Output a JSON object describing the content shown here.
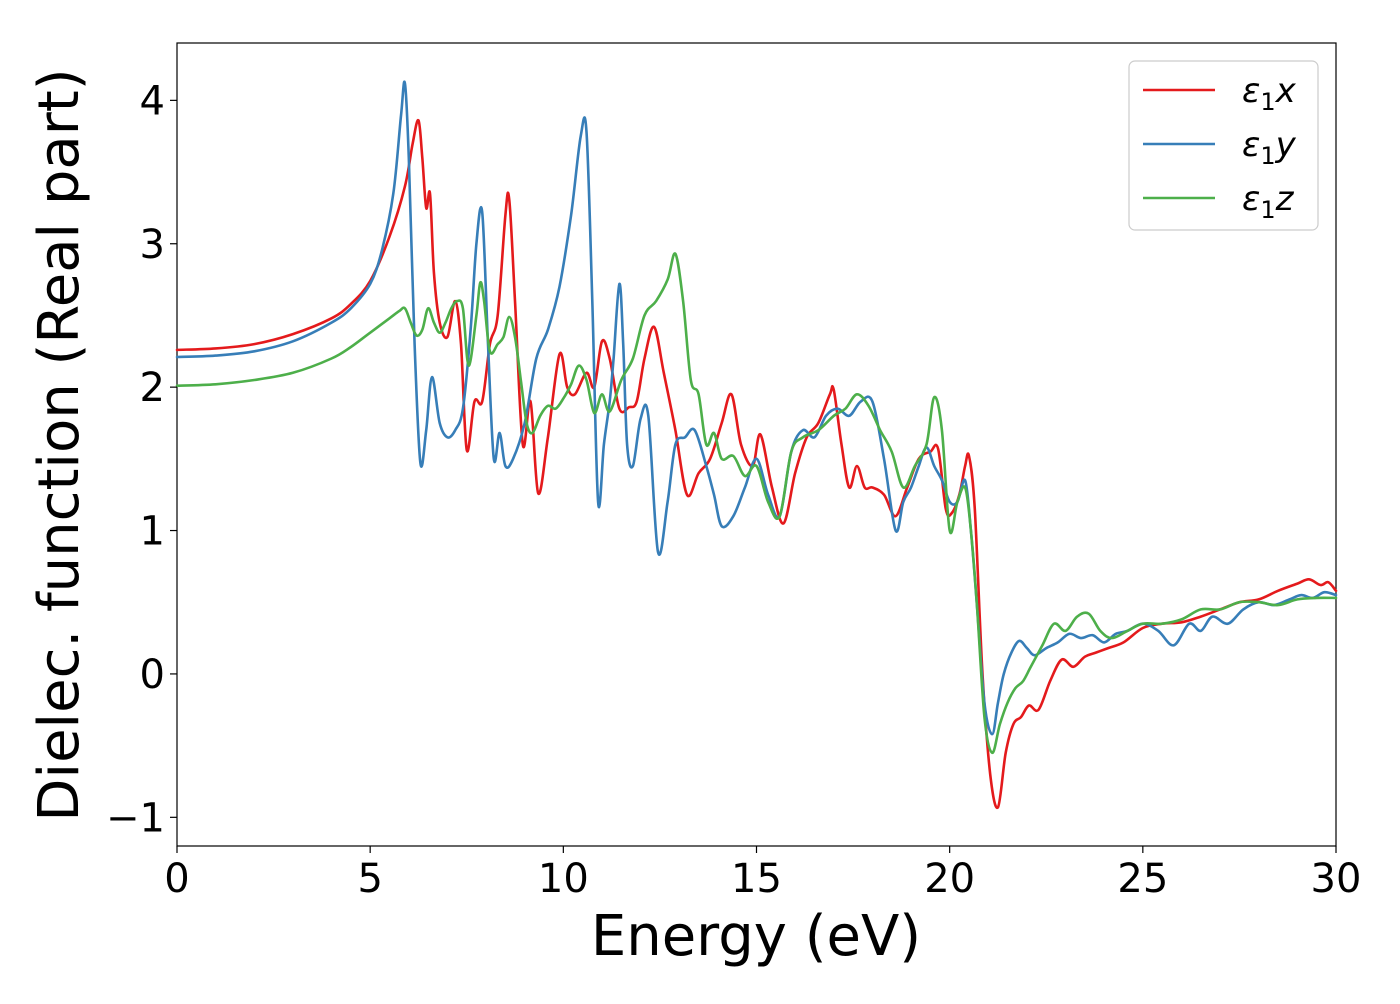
{
  "chart_data": {
    "type": "line",
    "title": "",
    "xlabel": "Energy (eV)",
    "ylabel": "Dielec. function (Real part)",
    "xlim": [
      0,
      30
    ],
    "ylim": [
      -1.2,
      4.4
    ],
    "xticks": [
      0,
      5,
      10,
      15,
      20,
      25,
      30
    ],
    "xtick_labels": [
      "0",
      "5",
      "10",
      "15",
      "20",
      "25",
      "30"
    ],
    "yticks": [
      -1,
      0,
      1,
      2,
      3,
      4
    ],
    "ytick_labels": [
      "−1",
      "0",
      "1",
      "2",
      "3",
      "4"
    ],
    "grid": false,
    "legend_position": "top-right",
    "series": [
      {
        "name": "ε1x",
        "legend_base": "ε",
        "legend_sub": "1",
        "legend_var": "x",
        "color": "#e41a1c",
        "x": [
          0,
          1,
          2,
          3,
          4,
          4.5,
          5,
          5.5,
          5.9,
          6.1,
          6.25,
          6.35,
          6.45,
          6.55,
          6.65,
          6.8,
          7.0,
          7.2,
          7.35,
          7.5,
          7.7,
          7.9,
          8.1,
          8.3,
          8.5,
          8.6,
          8.75,
          8.95,
          9.15,
          9.35,
          9.6,
          9.9,
          10.1,
          10.3,
          10.6,
          10.8,
          11.0,
          11.2,
          11.45,
          11.7,
          11.9,
          12.1,
          12.35,
          12.6,
          12.9,
          13.2,
          13.5,
          13.8,
          14.1,
          14.35,
          14.6,
          14.9,
          15.1,
          15.4,
          15.7,
          16.0,
          16.3,
          16.6,
          16.9,
          17.0,
          17.2,
          17.4,
          17.6,
          17.8,
          18.0,
          18.3,
          18.6,
          18.9,
          19.2,
          19.5,
          19.7,
          19.9,
          20.05,
          20.25,
          20.4,
          20.5,
          20.65,
          20.85,
          21.05,
          21.25,
          21.45,
          21.65,
          21.85,
          22.05,
          22.3,
          22.6,
          22.9,
          23.2,
          23.5,
          23.8,
          24.1,
          24.5,
          25.0,
          25.5,
          26.0,
          26.5,
          27.0,
          27.5,
          28.0,
          28.5,
          29.0,
          29.3,
          29.6,
          29.8,
          30.0
        ],
        "values": [
          2.26,
          2.27,
          2.3,
          2.37,
          2.48,
          2.58,
          2.74,
          3.05,
          3.4,
          3.7,
          3.86,
          3.6,
          3.25,
          3.35,
          2.8,
          2.45,
          2.35,
          2.6,
          2.3,
          1.56,
          1.9,
          1.9,
          2.3,
          2.5,
          3.2,
          3.31,
          2.6,
          1.6,
          1.9,
          1.26,
          1.65,
          2.23,
          2.0,
          1.95,
          2.1,
          2.0,
          2.32,
          2.2,
          1.85,
          1.86,
          1.9,
          2.2,
          2.42,
          2.1,
          1.7,
          1.25,
          1.4,
          1.5,
          1.75,
          1.95,
          1.6,
          1.45,
          1.67,
          1.3,
          1.05,
          1.4,
          1.65,
          1.75,
          1.95,
          1.98,
          1.6,
          1.3,
          1.45,
          1.3,
          1.3,
          1.25,
          1.1,
          1.3,
          1.5,
          1.55,
          1.57,
          1.15,
          1.12,
          1.25,
          1.45,
          1.52,
          1.15,
          0.0,
          -0.7,
          -0.93,
          -0.55,
          -0.35,
          -0.3,
          -0.22,
          -0.25,
          -0.05,
          0.1,
          0.05,
          0.12,
          0.15,
          0.18,
          0.22,
          0.32,
          0.35,
          0.36,
          0.4,
          0.45,
          0.5,
          0.52,
          0.58,
          0.63,
          0.66,
          0.62,
          0.64,
          0.58
        ]
      },
      {
        "name": "ε1y",
        "legend_base": "ε",
        "legend_sub": "1",
        "legend_var": "y",
        "color": "#377eb8",
        "x": [
          0,
          1,
          2,
          3,
          4,
          4.5,
          5,
          5.3,
          5.6,
          5.8,
          5.9,
          6.0,
          6.15,
          6.3,
          6.45,
          6.6,
          6.8,
          7.0,
          7.2,
          7.4,
          7.6,
          7.75,
          7.9,
          8.05,
          8.2,
          8.35,
          8.5,
          8.7,
          9.0,
          9.3,
          9.6,
          9.9,
          10.2,
          10.45,
          10.6,
          10.75,
          10.9,
          11.05,
          11.2,
          11.3,
          11.45,
          11.55,
          11.65,
          11.8,
          12.0,
          12.2,
          12.45,
          12.7,
          12.9,
          13.15,
          13.4,
          13.7,
          13.9,
          14.1,
          14.4,
          14.7,
          15.0,
          15.3,
          15.6,
          15.9,
          16.2,
          16.5,
          16.8,
          17.1,
          17.4,
          17.7,
          18.0,
          18.3,
          18.6,
          18.8,
          19.0,
          19.2,
          19.4,
          19.6,
          19.8,
          20.0,
          20.2,
          20.4,
          20.55,
          20.7,
          20.9,
          21.1,
          21.25,
          21.4,
          21.6,
          21.8,
          22.0,
          22.2,
          22.5,
          22.8,
          23.1,
          23.4,
          23.7,
          24.0,
          24.3,
          24.6,
          25.0,
          25.4,
          25.8,
          26.2,
          26.5,
          26.8,
          27.2,
          27.6,
          28.0,
          28.4,
          28.8,
          29.1,
          29.4,
          29.7,
          30.0
        ],
        "values": [
          2.21,
          2.22,
          2.25,
          2.32,
          2.45,
          2.55,
          2.72,
          2.95,
          3.35,
          3.9,
          4.12,
          3.6,
          2.3,
          1.47,
          1.7,
          2.07,
          1.75,
          1.65,
          1.7,
          1.85,
          2.4,
          3.0,
          3.22,
          2.3,
          1.5,
          1.68,
          1.45,
          1.5,
          1.75,
          2.2,
          2.4,
          2.7,
          3.2,
          3.75,
          3.78,
          2.6,
          1.2,
          1.6,
          1.9,
          2.2,
          2.72,
          2.3,
          1.6,
          1.45,
          1.78,
          1.8,
          0.85,
          1.2,
          1.6,
          1.65,
          1.7,
          1.45,
          1.25,
          1.03,
          1.1,
          1.3,
          1.5,
          1.25,
          1.1,
          1.55,
          1.7,
          1.65,
          1.8,
          1.85,
          1.8,
          1.9,
          1.9,
          1.5,
          1.0,
          1.2,
          1.3,
          1.45,
          1.58,
          1.45,
          1.35,
          1.2,
          1.2,
          1.35,
          1.0,
          0.5,
          -0.2,
          -0.42,
          -0.2,
          0.0,
          0.15,
          0.23,
          0.18,
          0.13,
          0.18,
          0.22,
          0.28,
          0.25,
          0.27,
          0.22,
          0.28,
          0.3,
          0.35,
          0.3,
          0.2,
          0.35,
          0.3,
          0.4,
          0.35,
          0.45,
          0.5,
          0.48,
          0.52,
          0.55,
          0.53,
          0.57,
          0.55
        ]
      },
      {
        "name": "ε1z",
        "legend_base": "ε",
        "legend_sub": "1",
        "legend_var": "z",
        "color": "#4daf4a",
        "x": [
          0,
          1,
          2,
          3,
          4,
          4.5,
          5,
          5.5,
          5.75,
          5.9,
          6.05,
          6.2,
          6.35,
          6.5,
          6.65,
          6.8,
          6.95,
          7.1,
          7.25,
          7.4,
          7.55,
          7.75,
          7.85,
          7.95,
          8.1,
          8.3,
          8.45,
          8.6,
          8.75,
          8.9,
          9.05,
          9.2,
          9.4,
          9.6,
          9.8,
          10.0,
          10.2,
          10.4,
          10.6,
          10.8,
          11.0,
          11.2,
          11.5,
          11.8,
          12.1,
          12.4,
          12.7,
          12.9,
          13.1,
          13.3,
          13.5,
          13.7,
          13.9,
          14.1,
          14.4,
          14.7,
          15.0,
          15.3,
          15.6,
          15.9,
          16.2,
          16.6,
          17.0,
          17.3,
          17.6,
          17.9,
          18.2,
          18.5,
          18.8,
          19.1,
          19.4,
          19.6,
          19.8,
          20.0,
          20.2,
          20.4,
          20.55,
          20.7,
          20.9,
          21.1,
          21.3,
          21.5,
          21.7,
          21.9,
          22.1,
          22.4,
          22.7,
          23.0,
          23.3,
          23.6,
          23.9,
          24.2,
          24.6,
          25.0,
          25.5,
          26.0,
          26.5,
          27.0,
          27.5,
          28.0,
          28.5,
          29.0,
          29.5,
          30.0
        ],
        "values": [
          2.01,
          2.02,
          2.05,
          2.1,
          2.2,
          2.28,
          2.38,
          2.48,
          2.53,
          2.55,
          2.45,
          2.36,
          2.4,
          2.55,
          2.45,
          2.38,
          2.45,
          2.55,
          2.6,
          2.55,
          2.15,
          2.5,
          2.73,
          2.6,
          2.25,
          2.3,
          2.35,
          2.49,
          2.35,
          2.05,
          1.75,
          1.68,
          1.8,
          1.87,
          1.85,
          1.92,
          2.02,
          2.15,
          2.05,
          1.82,
          1.95,
          1.83,
          2.05,
          2.2,
          2.5,
          2.6,
          2.75,
          2.93,
          2.6,
          2.05,
          1.95,
          1.6,
          1.68,
          1.5,
          1.52,
          1.38,
          1.45,
          1.2,
          1.1,
          1.55,
          1.65,
          1.7,
          1.8,
          1.85,
          1.95,
          1.87,
          1.7,
          1.55,
          1.3,
          1.45,
          1.6,
          1.93,
          1.7,
          1.0,
          1.2,
          1.3,
          1.0,
          0.5,
          -0.3,
          -0.55,
          -0.35,
          -0.2,
          -0.1,
          -0.05,
          0.05,
          0.2,
          0.35,
          0.3,
          0.4,
          0.42,
          0.3,
          0.25,
          0.3,
          0.35,
          0.35,
          0.38,
          0.45,
          0.45,
          0.5,
          0.5,
          0.48,
          0.52,
          0.53,
          0.53
        ]
      }
    ]
  }
}
